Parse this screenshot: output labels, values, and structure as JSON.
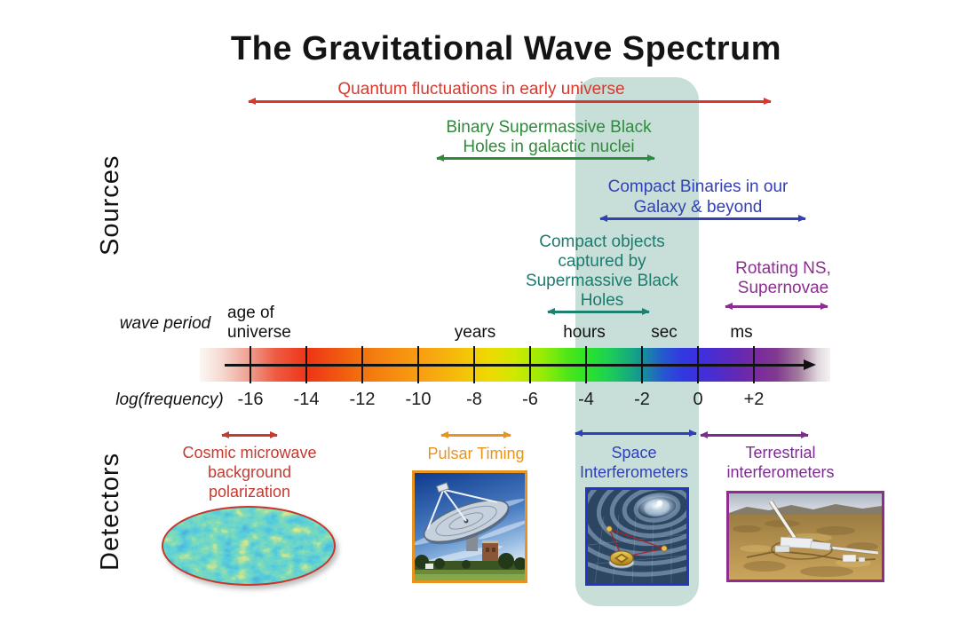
{
  "title": "The Gravitational Wave Spectrum",
  "colors": {
    "band": "#c8dfd9",
    "quantum": "#d53a2f",
    "smbh": "#2e8b3a",
    "compact_binaries": "#3340b4",
    "emri": "#1d7a6c",
    "rotating_ns": "#8b2f8f",
    "cmb_detector": "#c43b32",
    "pulsar_timing": "#e8941e",
    "space_interf": "#2f41b5",
    "terrestrial_interf": "#7b2d8e"
  },
  "sources": {
    "section_label": "Sources",
    "quantum": {
      "text": "Quantum fluctuations in early universe"
    },
    "smbh": {
      "line1": "Binary Supermassive Black",
      "line2": "Holes in galactic nuclei"
    },
    "compact_binaries": {
      "line1": "Compact Binaries in our",
      "line2": "Galaxy & beyond"
    },
    "emri": {
      "line1": "Compact objects",
      "line2": "captured by",
      "line3": "Supermassive Black",
      "line4": "Holes"
    },
    "rotating_ns": {
      "line1": "Rotating NS,",
      "line2": "Supernovae"
    }
  },
  "spectrum": {
    "wave_period_label": "wave period",
    "frequency_label": "log(frequency)",
    "period_labels": {
      "age1": "age of",
      "age2": "universe",
      "years": "years",
      "hours": "hours",
      "sec": "sec",
      "ms": "ms"
    },
    "tick_values": [
      "-16",
      "-14",
      "-12",
      "-10",
      "-8",
      "-6",
      "-4",
      "-2",
      "0",
      "+2"
    ]
  },
  "detectors": {
    "section_label": "Detectors",
    "cmb": {
      "line1": "Cosmic microwave",
      "line2": "background",
      "line3": "polarization"
    },
    "pulsar": {
      "text": "Pulsar Timing"
    },
    "space": {
      "line1": "Space",
      "line2": "Interferometers"
    },
    "terrestrial": {
      "line1": "Terrestrial",
      "line2": "interferometers"
    }
  },
  "images": {
    "cmb": "cosmic-microwave-background-map",
    "pulsar": "radio-telescope-photo",
    "lisa": "space-interferometer-illustration",
    "ligo": "terrestrial-interferometer-aerial-photo"
  }
}
